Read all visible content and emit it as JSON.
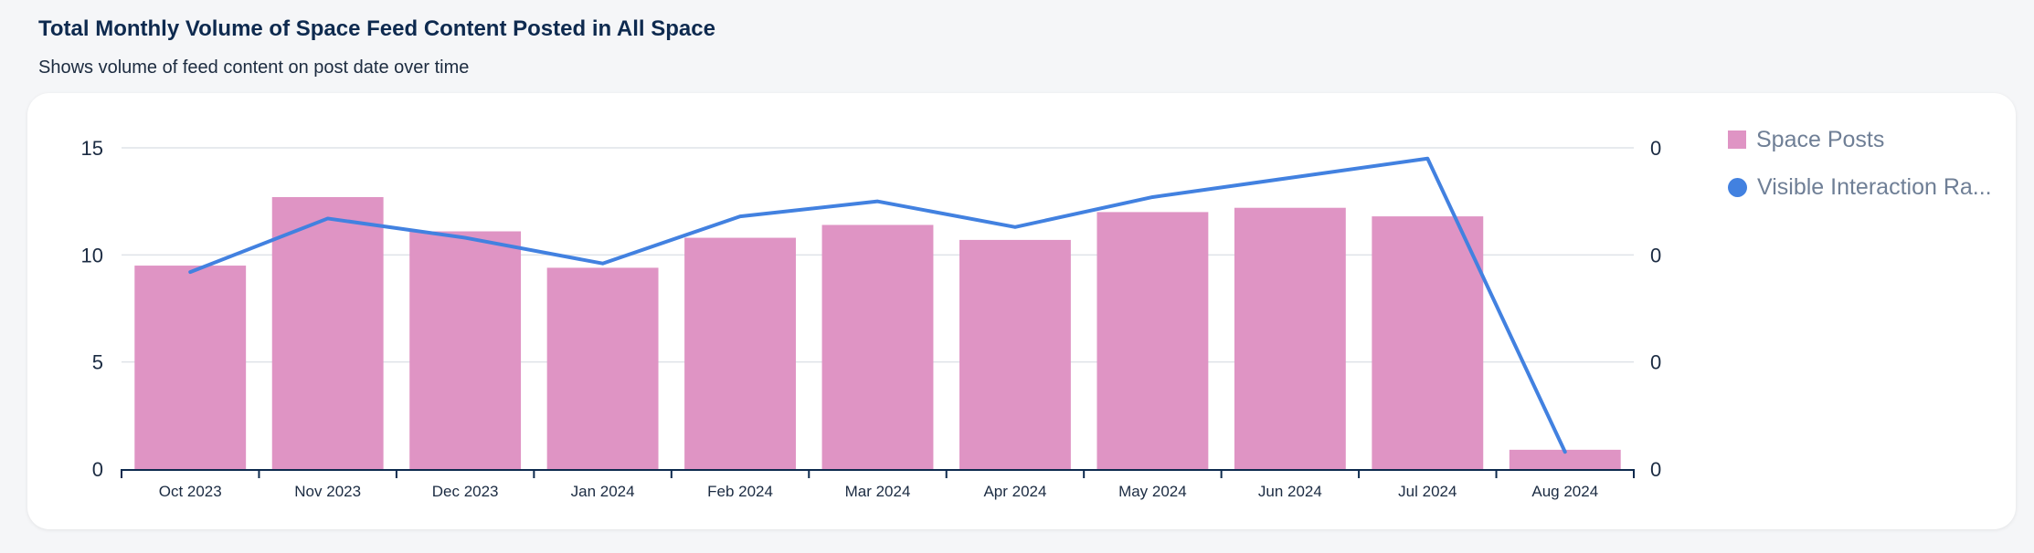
{
  "header": {
    "title": "Total Monthly Volume of Space Feed Content Posted in All Space",
    "subtitle": "Shows volume of feed content on post date over time"
  },
  "legend": {
    "items": [
      {
        "label": "Space Posts",
        "shape": "square",
        "color": "#df94c4"
      },
      {
        "label": "Visible Interaction Ra...",
        "shape": "circle",
        "color": "#4281e0"
      }
    ]
  },
  "chart_data": {
    "type": "bar",
    "categories": [
      "Oct 2023",
      "Nov 2023",
      "Dec 2023",
      "Jan 2024",
      "Feb 2024",
      "Mar 2024",
      "Apr 2024",
      "May 2024",
      "Jun 2024",
      "Jul 2024",
      "Aug 2024"
    ],
    "series": [
      {
        "name": "Space Posts",
        "type": "bar",
        "axis": "left",
        "color": "#df94c4",
        "values": [
          9.5,
          12.7,
          11.1,
          9.4,
          10.8,
          11.4,
          10.7,
          12.0,
          12.2,
          11.8,
          0.9
        ]
      },
      {
        "name": "Visible Interaction Ra...",
        "type": "line",
        "axis": "right",
        "color": "#4281e0",
        "values": [
          9.2,
          11.7,
          10.8,
          9.6,
          11.8,
          12.5,
          11.3,
          12.7,
          13.6,
          14.5,
          0.8
        ]
      }
    ],
    "y_left": {
      "ticks": [
        0,
        5,
        10,
        15
      ],
      "ylim": [
        0,
        15
      ]
    },
    "y_right": {
      "tick_labels": [
        "0",
        "0",
        "0",
        "0"
      ]
    },
    "grid": true,
    "legend_position": "right"
  }
}
